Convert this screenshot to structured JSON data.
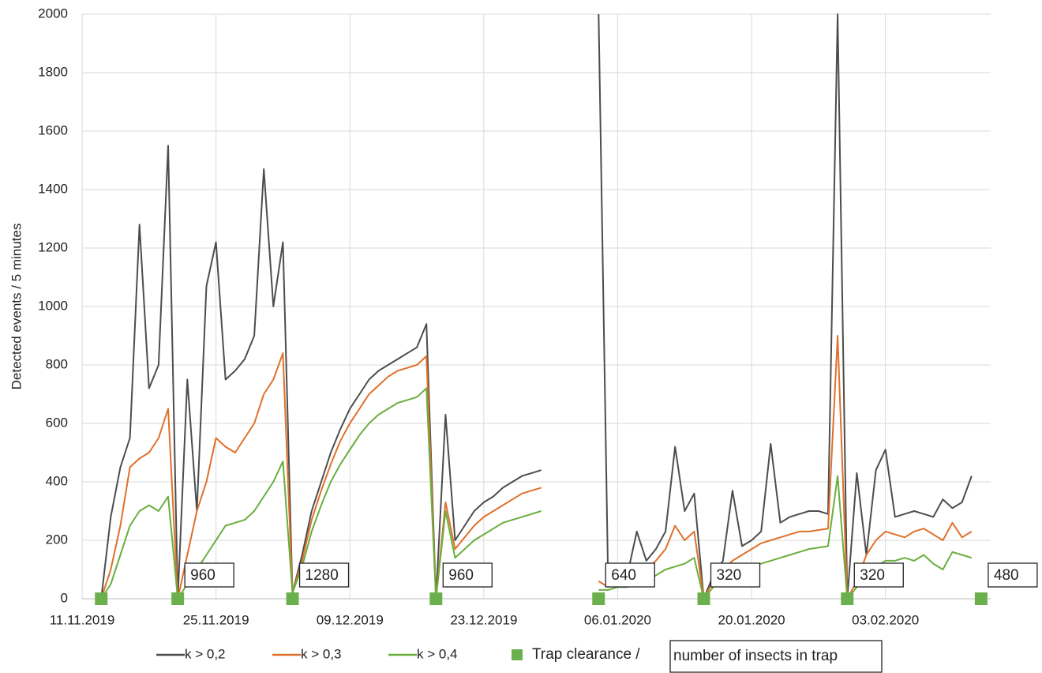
{
  "chart_data": {
    "type": "line",
    "y_label": "Detected events / 5 minutes",
    "x": [
      "13.11.2019",
      "14.11.2019",
      "15.11.2019",
      "16.11.2019",
      "17.11.2019",
      "18.11.2019",
      "19.11.2019",
      "20.11.2019",
      "21.11.2019",
      "22.11.2019",
      "23.11.2019",
      "24.11.2019",
      "25.11.2019",
      "26.11.2019",
      "27.11.2019",
      "28.11.2019",
      "29.11.2019",
      "30.11.2019",
      "01.12.2019",
      "02.12.2019",
      "03.12.2019",
      "04.12.2019",
      "05.12.2019",
      "06.12.2019",
      "07.12.2019",
      "08.12.2019",
      "09.12.2019",
      "10.12.2019",
      "11.12.2019",
      "12.12.2019",
      "13.12.2019",
      "14.12.2019",
      "15.12.2019",
      "16.12.2019",
      "17.12.2019",
      "18.12.2019",
      "19.12.2019",
      "20.12.2019",
      "21.12.2019",
      "22.12.2019",
      "23.12.2019",
      "24.12.2019",
      "25.12.2019",
      "26.12.2019",
      "27.12.2019",
      "28.12.2019",
      "29.12.2019",
      "30.12.2019",
      "31.12.2019",
      "01.01.2020",
      "02.01.2020",
      "03.01.2020",
      "04.01.2020",
      "05.01.2020",
      "06.01.2020",
      "07.01.2020",
      "08.01.2020",
      "09.01.2020",
      "10.01.2020",
      "11.01.2020",
      "12.01.2020",
      "13.01.2020",
      "14.01.2020",
      "15.01.2020",
      "16.01.2020",
      "17.01.2020",
      "18.01.2020",
      "19.01.2020",
      "20.01.2020",
      "21.01.2020",
      "22.01.2020",
      "23.01.2020",
      "24.01.2020",
      "25.01.2020",
      "26.01.2020",
      "27.01.2020",
      "28.01.2020",
      "29.01.2020",
      "30.01.2020",
      "31.01.2020",
      "01.02.2020",
      "02.02.2020",
      "03.02.2020",
      "04.02.2020",
      "05.02.2020",
      "06.02.2020",
      "07.02.2020",
      "08.02.2020",
      "09.02.2020",
      "10.02.2020",
      "11.02.2020",
      "12.02.2020"
    ],
    "series": [
      {
        "name": "k > 0,2",
        "color": "#4d4d4d",
        "values": [
          0,
          280,
          450,
          550,
          1280,
          720,
          800,
          1550,
          0,
          750,
          300,
          1070,
          1220,
          750,
          780,
          820,
          900,
          1470,
          1000,
          1220,
          20,
          150,
          300,
          400,
          500,
          580,
          650,
          700,
          750,
          780,
          800,
          820,
          840,
          860,
          940,
          0,
          630,
          200,
          250,
          300,
          330,
          350,
          380,
          400,
          420,
          430,
          440,
          null,
          null,
          null,
          null,
          null,
          2000,
          50,
          60,
          80,
          230,
          130,
          170,
          230,
          520,
          300,
          360,
          0,
          80,
          130,
          370,
          180,
          200,
          230,
          530,
          260,
          280,
          290,
          300,
          300,
          290,
          2000,
          0,
          430,
          150,
          440,
          510,
          280,
          290,
          300,
          290,
          280,
          340,
          310,
          330,
          420
        ]
      },
      {
        "name": "k > 0,3",
        "color": "#e0702a",
        "values": [
          0,
          100,
          250,
          450,
          480,
          500,
          550,
          650,
          0,
          150,
          300,
          400,
          550,
          520,
          500,
          550,
          600,
          700,
          750,
          840,
          20,
          130,
          270,
          370,
          460,
          540,
          600,
          650,
          700,
          730,
          760,
          780,
          790,
          800,
          830,
          0,
          330,
          170,
          210,
          250,
          280,
          300,
          320,
          340,
          360,
          370,
          380,
          null,
          null,
          null,
          null,
          null,
          60,
          40,
          50,
          60,
          80,
          100,
          130,
          170,
          250,
          200,
          230,
          0,
          60,
          100,
          130,
          150,
          170,
          190,
          200,
          210,
          220,
          230,
          230,
          235,
          240,
          900,
          0,
          60,
          150,
          200,
          230,
          220,
          210,
          230,
          240,
          220,
          200,
          260,
          210,
          230
        ]
      },
      {
        "name": "k > 0,4",
        "color": "#6aae3e",
        "values": [
          0,
          50,
          150,
          250,
          300,
          320,
          300,
          350,
          0,
          50,
          100,
          150,
          200,
          250,
          260,
          270,
          300,
          350,
          400,
          470,
          20,
          110,
          230,
          320,
          400,
          460,
          510,
          560,
          600,
          630,
          650,
          670,
          680,
          690,
          720,
          0,
          300,
          140,
          170,
          200,
          220,
          240,
          260,
          270,
          280,
          290,
          300,
          null,
          null,
          null,
          null,
          null,
          30,
          30,
          40,
          40,
          50,
          60,
          80,
          100,
          110,
          120,
          140,
          0,
          40,
          60,
          80,
          100,
          110,
          120,
          130,
          140,
          150,
          160,
          170,
          175,
          180,
          420,
          0,
          40,
          80,
          110,
          130,
          130,
          140,
          130,
          150,
          120,
          100,
          160,
          150,
          140
        ]
      }
    ],
    "clearance": {
      "name": "Trap clearance /",
      "label_name": "number of insects in trap",
      "color": "#6ab04c",
      "x": [
        "13.11.2019",
        "21.11.2019",
        "03.12.2019",
        "18.12.2019",
        "04.01.2020",
        "15.01.2020",
        "30.01.2020",
        "13.02.2020"
      ],
      "values": [
        0,
        0,
        0,
        0,
        0,
        0,
        0,
        0
      ],
      "labels": [
        null,
        960,
        1280,
        960,
        640,
        320,
        320,
        480
      ]
    },
    "xlim": [
      "11.11.2019",
      "14.02.2020"
    ],
    "xticks": [
      "11.11.2019",
      "25.11.2019",
      "09.12.2019",
      "23.12.2019",
      "06.01.2020",
      "20.01.2020",
      "03.02.2020"
    ],
    "ylim": [
      0,
      2000
    ],
    "yticks": [
      0,
      200,
      400,
      600,
      800,
      1000,
      1200,
      1400,
      1600,
      1800,
      2000
    ],
    "grid": true
  }
}
